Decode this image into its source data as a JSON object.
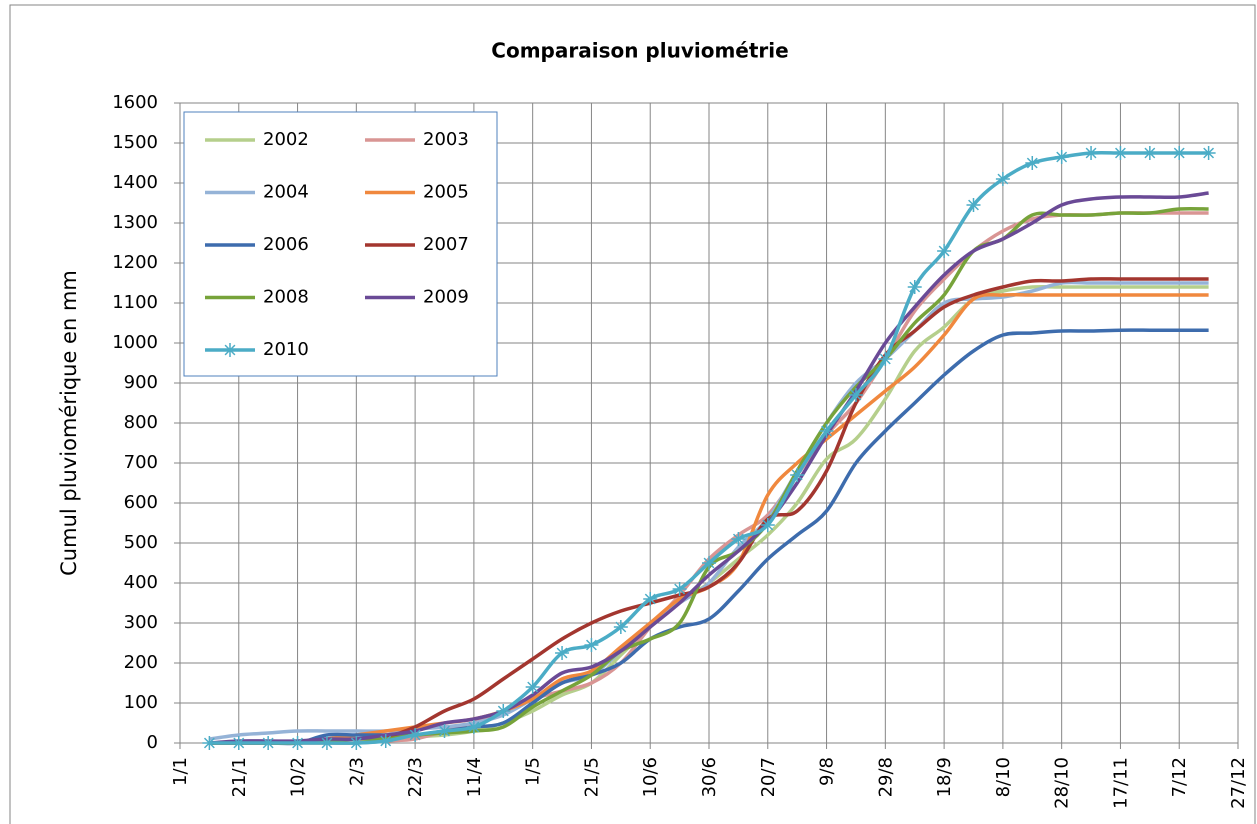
{
  "chart_data": {
    "type": "line",
    "title": "Comparaison pluviométrie",
    "y_label": "Cumul pluviomérique en mm",
    "x": [
      10,
      20,
      30,
      40,
      50,
      60,
      70,
      80,
      90,
      100,
      110,
      120,
      130,
      140,
      150,
      160,
      170,
      180,
      190,
      200,
      210,
      220,
      230,
      240,
      250,
      260,
      270,
      280,
      290,
      300,
      310,
      320,
      330,
      340,
      350
    ],
    "xlim": [
      0,
      360
    ],
    "xticks": [
      {
        "value": 0,
        "label": "1/1"
      },
      {
        "value": 20,
        "label": "21/1"
      },
      {
        "value": 40,
        "label": "10/2"
      },
      {
        "value": 60,
        "label": "2/3"
      },
      {
        "value": 80,
        "label": "22/3"
      },
      {
        "value": 100,
        "label": "11/4"
      },
      {
        "value": 120,
        "label": "1/5"
      },
      {
        "value": 140,
        "label": "21/5"
      },
      {
        "value": 160,
        "label": "10/6"
      },
      {
        "value": 180,
        "label": "30/6"
      },
      {
        "value": 200,
        "label": "20/7"
      },
      {
        "value": 220,
        "label": "9/8"
      },
      {
        "value": 240,
        "label": "29/8"
      },
      {
        "value": 260,
        "label": "18/9"
      },
      {
        "value": 280,
        "label": "8/10"
      },
      {
        "value": 300,
        "label": "28/10"
      },
      {
        "value": 320,
        "label": "17/11"
      },
      {
        "value": 340,
        "label": "7/12"
      },
      {
        "value": 360,
        "label": "27/12"
      }
    ],
    "ylim": [
      0,
      1600
    ],
    "yticks": [
      0,
      100,
      200,
      300,
      400,
      500,
      600,
      700,
      800,
      900,
      1000,
      1100,
      1200,
      1300,
      1400,
      1500,
      1600
    ],
    "grid": true,
    "legend": "upper left",
    "series": [
      {
        "name": "2002",
        "color": "#b5cf8c",
        "values": [
          0,
          0,
          0,
          0,
          0,
          0,
          5,
          15,
          20,
          30,
          50,
          80,
          120,
          150,
          220,
          290,
          350,
          400,
          460,
          520,
          600,
          710,
          760,
          860,
          980,
          1040,
          1110,
          1130,
          1140,
          1140,
          1140,
          1140,
          1140,
          1140,
          1140
        ]
      },
      {
        "name": "2003",
        "color": "#d99594",
        "values": [
          0,
          0,
          0,
          0,
          0,
          0,
          5,
          10,
          30,
          50,
          80,
          110,
          130,
          150,
          200,
          290,
          370,
          460,
          520,
          570,
          670,
          770,
          850,
          960,
          1080,
          1160,
          1230,
          1280,
          1310,
          1320,
          1320,
          1325,
          1325,
          1325,
          1325
        ]
      },
      {
        "name": "2004",
        "color": "#95b3d7",
        "values": [
          10,
          20,
          25,
          30,
          30,
          30,
          30,
          35,
          40,
          50,
          70,
          110,
          150,
          170,
          230,
          300,
          350,
          400,
          490,
          560,
          680,
          800,
          900,
          960,
          1030,
          1100,
          1110,
          1115,
          1130,
          1150,
          1150,
          1150,
          1150,
          1150,
          1150
        ]
      },
      {
        "name": "2005",
        "color": "#f0883e",
        "values": [
          0,
          0,
          0,
          0,
          10,
          20,
          30,
          40,
          50,
          60,
          80,
          110,
          160,
          180,
          240,
          300,
          360,
          390,
          450,
          620,
          700,
          760,
          820,
          880,
          940,
          1020,
          1110,
          1120,
          1120,
          1120,
          1120,
          1120,
          1120,
          1120,
          1120
        ]
      },
      {
        "name": "2006",
        "color": "#3d6cad",
        "values": [
          0,
          0,
          0,
          0,
          20,
          20,
          20,
          20,
          30,
          40,
          50,
          100,
          150,
          170,
          200,
          260,
          290,
          310,
          380,
          460,
          520,
          580,
          700,
          780,
          850,
          920,
          980,
          1020,
          1025,
          1030,
          1030,
          1032,
          1032,
          1032,
          1032
        ]
      },
      {
        "name": "2007",
        "color": "#a3362f",
        "values": [
          0,
          0,
          0,
          0,
          5,
          10,
          15,
          40,
          80,
          110,
          160,
          210,
          260,
          300,
          330,
          350,
          370,
          390,
          450,
          560,
          580,
          680,
          850,
          970,
          1030,
          1090,
          1120,
          1140,
          1155,
          1155,
          1160,
          1160,
          1160,
          1160,
          1160
        ]
      },
      {
        "name": "2008",
        "color": "#77a33a",
        "values": [
          0,
          0,
          0,
          0,
          5,
          10,
          10,
          20,
          25,
          30,
          40,
          90,
          130,
          170,
          230,
          260,
          300,
          440,
          480,
          550,
          680,
          800,
          890,
          960,
          1050,
          1120,
          1230,
          1260,
          1320,
          1320,
          1320,
          1325,
          1325,
          1335,
          1335
        ]
      },
      {
        "name": "2009",
        "color": "#6a4a96",
        "values": [
          0,
          5,
          5,
          5,
          10,
          10,
          20,
          30,
          50,
          60,
          80,
          120,
          175,
          190,
          230,
          290,
          350,
          420,
          480,
          550,
          650,
          770,
          880,
          1000,
          1090,
          1170,
          1230,
          1260,
          1300,
          1345,
          1360,
          1365,
          1365,
          1365,
          1375
        ]
      },
      {
        "name": "2010",
        "color": "#4bacc6",
        "marker": "star",
        "values": [
          0,
          0,
          0,
          0,
          0,
          0,
          5,
          20,
          30,
          40,
          80,
          140,
          225,
          245,
          290,
          360,
          385,
          450,
          510,
          545,
          670,
          780,
          870,
          960,
          1140,
          1230,
          1345,
          1410,
          1450,
          1465,
          1475,
          1475,
          1475,
          1475,
          1475
        ]
      }
    ]
  }
}
